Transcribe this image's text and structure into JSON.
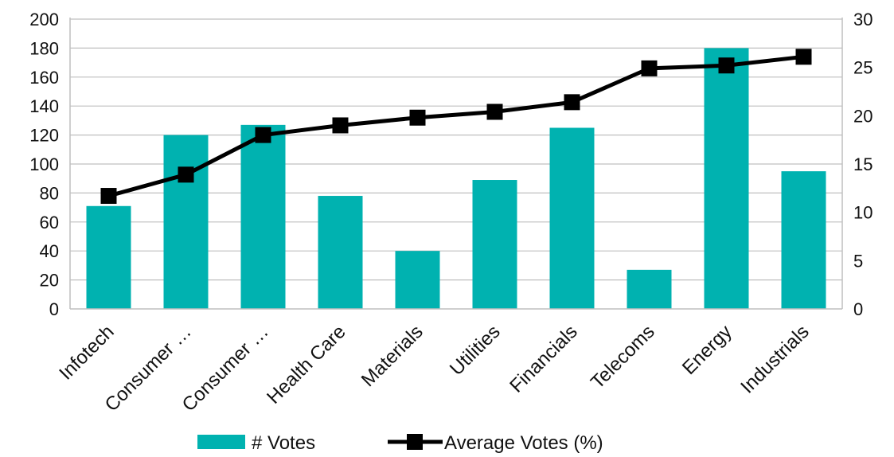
{
  "chart_data": {
    "type": "bar",
    "categories": [
      "Infotech",
      "Consumer …",
      "Consumer …",
      "Health Care",
      "Materials",
      "Utilities",
      "Financials",
      "Telecoms",
      "Energy",
      "Industrials"
    ],
    "series": [
      {
        "name": "# Votes",
        "type": "bar",
        "axis": "left",
        "color": "#00b2b0",
        "values": [
          71,
          120,
          127,
          78,
          40,
          89,
          125,
          27,
          180,
          95
        ]
      },
      {
        "name": "Average Votes (%)",
        "type": "line",
        "axis": "right",
        "color": "#000000",
        "marker": "square",
        "values": [
          11.7,
          13.9,
          18.0,
          19.0,
          19.8,
          20.4,
          21.4,
          24.9,
          25.2,
          26.1
        ]
      }
    ],
    "y_left": {
      "min": 0,
      "max": 200,
      "ticks": [
        "0",
        "20",
        "40",
        "60",
        "80",
        "100",
        "120",
        "140",
        "160",
        "180",
        "200"
      ]
    },
    "y_right": {
      "min": 0,
      "max": 30,
      "ticks": [
        "0",
        "5",
        "10",
        "15",
        "20",
        "25",
        "30"
      ]
    },
    "title": "",
    "xlabel": "",
    "ylabel": "",
    "grid": "horizontal",
    "legend": "bottom"
  }
}
